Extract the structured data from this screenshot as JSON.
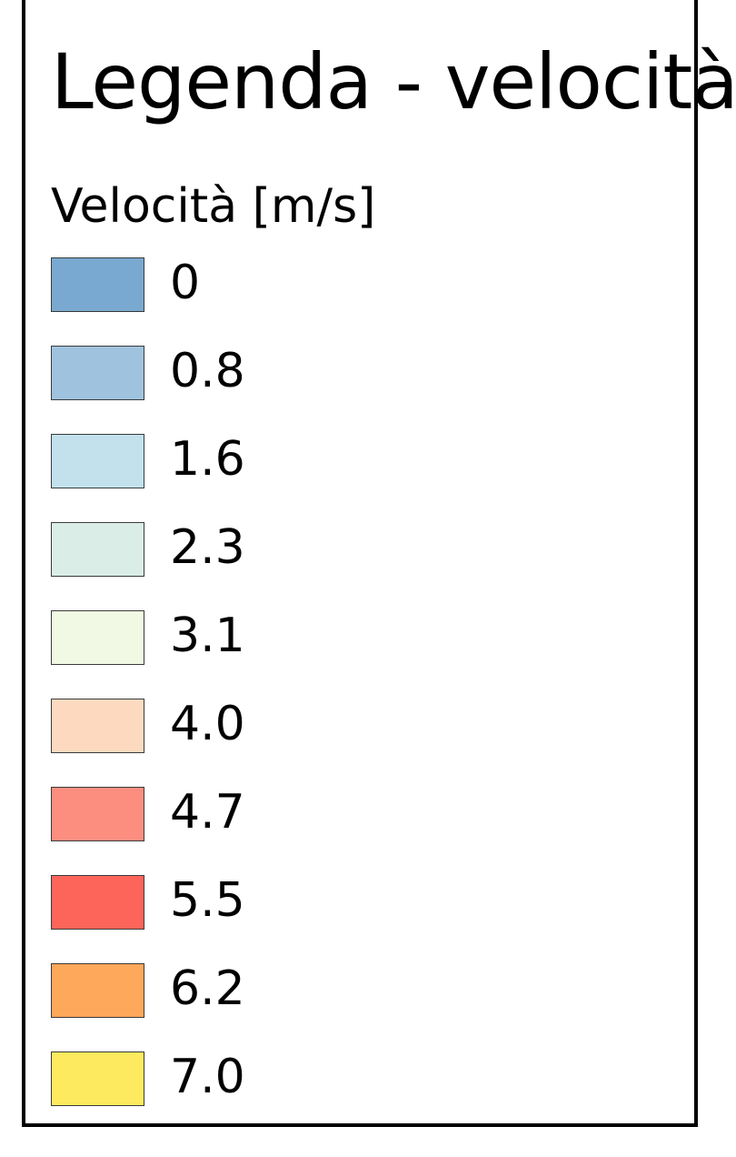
{
  "legend": {
    "title": "Legenda - velocità",
    "subtitle": "Velocità [m/s]",
    "items": [
      {
        "label": "0",
        "color": "#79a9d0"
      },
      {
        "label": "0.8",
        "color": "#9fc3de"
      },
      {
        "label": "1.6",
        "color": "#c2e1ed"
      },
      {
        "label": "2.3",
        "color": "#daede7"
      },
      {
        "label": "3.1",
        "color": "#f1f8e3"
      },
      {
        "label": "4.0",
        "color": "#fddabf"
      },
      {
        "label": "4.7",
        "color": "#fc8e80"
      },
      {
        "label": "5.5",
        "color": "#fd655b"
      },
      {
        "label": "6.2",
        "color": "#fda85b"
      },
      {
        "label": "7.0",
        "color": "#fdea5e"
      }
    ]
  }
}
